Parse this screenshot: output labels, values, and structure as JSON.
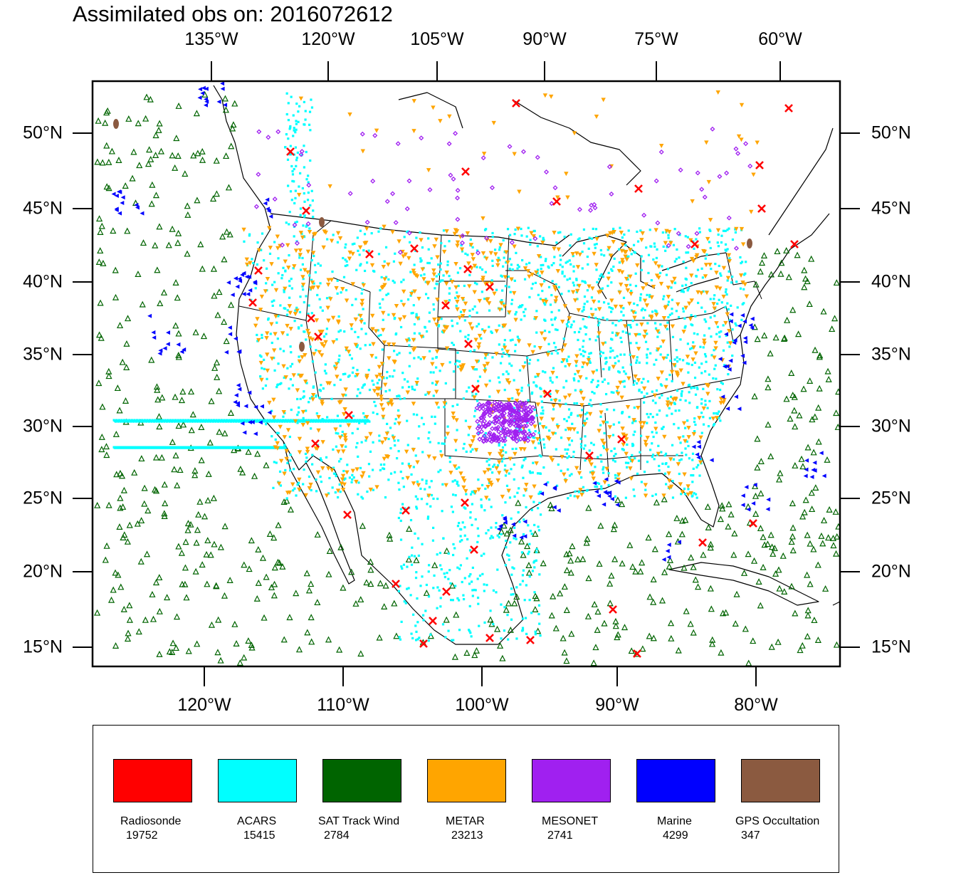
{
  "title": "Assimilated obs on: 2016072612",
  "top_axis_labels": [
    "135°W",
    "120°W",
    "105°W",
    "90°W",
    "75°W",
    "60°W"
  ],
  "bottom_axis_labels": [
    "120°W",
    "110°W",
    "100°W",
    "90°W",
    "80°W"
  ],
  "left_axis_labels": [
    "50°N",
    "45°N",
    "40°N",
    "35°N",
    "30°N",
    "25°N",
    "20°N",
    "15°N"
  ],
  "right_axis_labels": [
    "50°N",
    "45°N",
    "40°N",
    "35°N",
    "30°N",
    "25°N",
    "20°N",
    "15°N"
  ],
  "legend": [
    {
      "name": "Radiosonde",
      "count": "19752",
      "color": "#ff0000",
      "marker": "x-cross"
    },
    {
      "name": "ACARS",
      "count": "15415",
      "color": "#00ffff",
      "marker": "dot"
    },
    {
      "name": "SAT Track Wind",
      "count": "2784",
      "color": "#006400",
      "marker": "open-triangle-up"
    },
    {
      "name": "METAR",
      "count": "23213",
      "color": "#ffa500",
      "marker": "triangle-down"
    },
    {
      "name": "MESONET",
      "count": "2741",
      "color": "#a020f0",
      "marker": "diamond"
    },
    {
      "name": "Marine",
      "count": "4299",
      "color": "#0000ff",
      "marker": "triangle-left"
    },
    {
      "name": "GPS Occultation",
      "count": "347",
      "color": "#8b5a40",
      "marker": "blob"
    }
  ]
}
